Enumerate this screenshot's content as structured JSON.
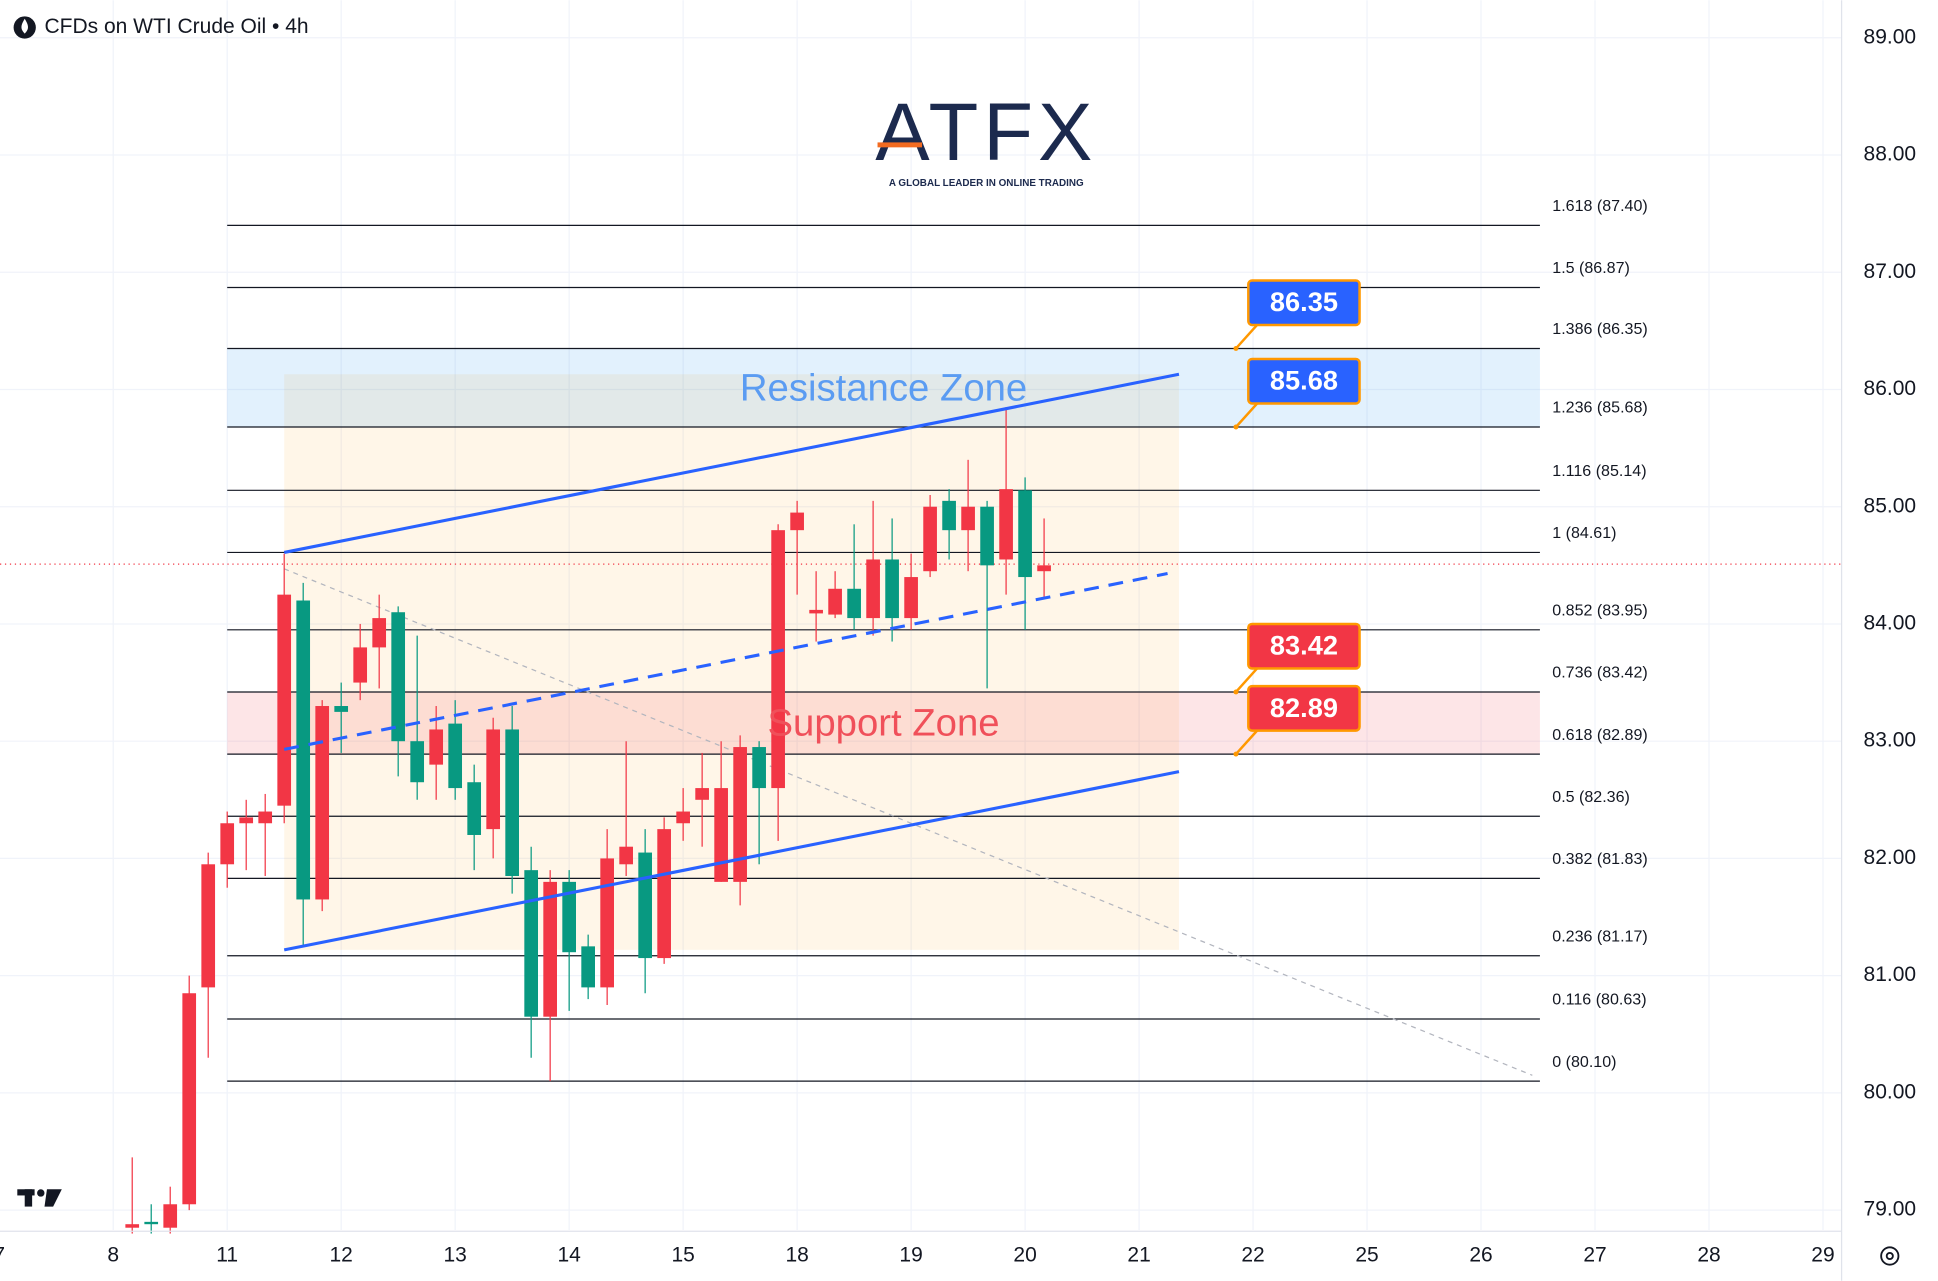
{
  "chart_data": {
    "type": "candlestick",
    "title": "CFDs on WTI Crude Oil • 4h",
    "logo": {
      "name": "ATFX",
      "tagline": "A GLOBAL LEADER IN ONLINE TRADING"
    },
    "x": [
      1,
      2,
      3,
      4,
      5,
      6,
      7,
      8,
      9,
      10,
      11,
      12,
      13,
      14,
      15,
      16,
      17,
      18,
      19,
      20,
      21,
      22,
      23,
      24,
      25,
      26,
      27,
      28,
      29,
      30,
      31,
      32,
      33,
      34,
      35,
      36,
      37,
      38,
      39,
      40,
      41,
      42,
      43,
      44,
      45,
      46,
      47,
      48,
      49
    ],
    "open": [
      78.85,
      78.9,
      78.85,
      79.05,
      80.9,
      81.95,
      82.3,
      82.3,
      82.45,
      84.2,
      81.65,
      83.3,
      83.5,
      83.8,
      84.1,
      83.0,
      82.8,
      83.15,
      82.65,
      82.25,
      83.1,
      81.9,
      80.65,
      81.8,
      81.25,
      80.9,
      81.95,
      82.05,
      81.15,
      82.3,
      82.5,
      81.8,
      81.8,
      82.95,
      82.6,
      84.8,
      84.09,
      84.08,
      84.3,
      84.05,
      84.55,
      84.05,
      84.45,
      85.05,
      84.8,
      85.0,
      84.55,
      85.14,
      84.45
    ],
    "high": [
      79.45,
      79.05,
      79.2,
      81.0,
      82.05,
      82.4,
      82.5,
      82.55,
      84.6,
      84.35,
      83.35,
      83.5,
      84.0,
      84.25,
      84.15,
      83.9,
      83.3,
      83.35,
      82.8,
      83.2,
      83.3,
      82.1,
      81.9,
      81.9,
      81.35,
      82.25,
      83.0,
      82.25,
      82.35,
      82.6,
      82.9,
      83.0,
      83.05,
      83.0,
      84.85,
      85.05,
      84.45,
      84.45,
      84.85,
      85.05,
      84.9,
      84.6,
      85.1,
      85.15,
      85.4,
      85.05,
      85.85,
      85.25,
      84.9
    ],
    "low": [
      78.8,
      78.8,
      78.8,
      79.0,
      80.3,
      81.75,
      81.9,
      81.85,
      82.3,
      81.25,
      81.55,
      82.9,
      83.35,
      83.45,
      82.7,
      82.5,
      82.5,
      82.5,
      81.9,
      82.0,
      81.7,
      80.3,
      80.1,
      80.7,
      80.8,
      80.75,
      81.85,
      80.85,
      81.1,
      82.15,
      82.1,
      81.8,
      81.6,
      81.95,
      82.15,
      84.25,
      83.85,
      84.05,
      83.95,
      83.9,
      83.85,
      83.95,
      84.4,
      84.55,
      84.45,
      83.45,
      84.25,
      83.95,
      84.22
    ],
    "close": [
      78.88,
      78.88,
      79.05,
      80.85,
      81.95,
      82.3,
      82.35,
      82.4,
      84.25,
      81.65,
      83.3,
      83.25,
      83.8,
      84.05,
      83.0,
      82.65,
      83.1,
      82.6,
      82.2,
      83.1,
      81.85,
      80.65,
      81.8,
      81.2,
      80.9,
      82.0,
      82.1,
      81.15,
      82.25,
      82.4,
      82.6,
      82.6,
      82.95,
      82.6,
      84.8,
      84.95,
      84.12,
      84.3,
      84.05,
      84.55,
      84.05,
      84.4,
      85.0,
      84.8,
      85.0,
      84.5,
      85.15,
      84.4,
      84.5
    ],
    "up_color": "#f23645",
    "down_color": "#089981",
    "xlim": [
      -5.96,
      90.98
    ],
    "xticks": [
      {
        "value": -6,
        "label": "7"
      },
      {
        "value": 0,
        "label": "8"
      },
      {
        "value": 6,
        "label": "11"
      },
      {
        "value": 12,
        "label": "12"
      },
      {
        "value": 18,
        "label": "13"
      },
      {
        "value": 24,
        "label": "14"
      },
      {
        "value": 30,
        "label": "15"
      },
      {
        "value": 36,
        "label": "18"
      },
      {
        "value": 42,
        "label": "19"
      },
      {
        "value": 48,
        "label": "20"
      },
      {
        "value": 54,
        "label": "21"
      },
      {
        "value": 60,
        "label": "22"
      },
      {
        "value": 66,
        "label": "25"
      },
      {
        "value": 72,
        "label": "26"
      },
      {
        "value": 78,
        "label": "27"
      },
      {
        "value": 84,
        "label": "28"
      },
      {
        "value": 90,
        "label": "29"
      }
    ],
    "ylim": [
      78.83,
      89.32
    ],
    "yticks": [
      {
        "value": 79,
        "label": "79.00"
      },
      {
        "value": 80,
        "label": "80.00"
      },
      {
        "value": 81,
        "label": "81.00"
      },
      {
        "value": 82,
        "label": "82.00"
      },
      {
        "value": 83,
        "label": "83.00"
      },
      {
        "value": 84,
        "label": "84.00"
      },
      {
        "value": 85,
        "label": "85.00"
      },
      {
        "value": 86,
        "label": "86.00"
      },
      {
        "value": 87,
        "label": "87.00"
      },
      {
        "value": 88,
        "label": "88.00"
      },
      {
        "value": 89,
        "label": "89.00"
      }
    ],
    "grid": true,
    "last_price": 84.51,
    "fib": {
      "x": [
        6,
        75.1
      ],
      "color": "#131722",
      "levels": [
        {
          "value": 87.4,
          "label": "1.618 (87.40)"
        },
        {
          "value": 86.87,
          "label": "1.5 (86.87)"
        },
        {
          "value": 86.35,
          "label": "1.386 (86.35)"
        },
        {
          "value": 85.68,
          "label": "1.236 (85.68)"
        },
        {
          "value": 85.14,
          "label": "1.116 (85.14)"
        },
        {
          "value": 84.61,
          "label": "1 (84.61)"
        },
        {
          "value": 83.95,
          "label": "0.852 (83.95)"
        },
        {
          "value": 83.42,
          "label": "0.736 (83.42)"
        },
        {
          "value": 82.89,
          "label": "0.618 (82.89)"
        },
        {
          "value": 82.36,
          "label": "0.5 (82.36)"
        },
        {
          "value": 81.83,
          "label": "0.382 (81.83)"
        },
        {
          "value": 81.17,
          "label": "0.236 (81.17)"
        },
        {
          "value": 80.63,
          "label": "0.116 (80.63)"
        },
        {
          "value": 80.1,
          "label": "0 (80.10)"
        }
      ]
    },
    "zones": [
      {
        "name": "Resistance Zone",
        "x": [
          6,
          75.1
        ],
        "y": [
          85.68,
          86.35
        ],
        "color": "#2196f3",
        "text_color": "#5b9cf2"
      },
      {
        "name": "Support Zone",
        "x": [
          6,
          75.1
        ],
        "y": [
          82.89,
          83.42
        ],
        "color": "#f23645",
        "text_color": "#f0505a"
      }
    ],
    "channel_fill": {
      "x": [
        9,
        56.1
      ],
      "y": [
        81.22,
        86.13
      ],
      "color": "#ff9800"
    },
    "channel": {
      "color": "#2962ff",
      "upper": {
        "x": [
          9,
          56.1
        ],
        "y": [
          84.61,
          86.13
        ]
      },
      "lower": {
        "x": [
          9,
          56.1
        ],
        "y": [
          81.22,
          82.74
        ]
      },
      "middle": {
        "x": [
          9,
          55.5
        ],
        "y": [
          82.93,
          84.43
        ]
      }
    },
    "trend_line": {
      "x": [
        9,
        74.7
      ],
      "y": [
        84.47,
        80.15
      ],
      "color": "#b2b5be"
    },
    "tag_x": 59.1,
    "price_tags": [
      {
        "value": 86.35,
        "color": "#2962ff"
      },
      {
        "value": 85.68,
        "color": "#2962ff"
      },
      {
        "value": 83.42,
        "color": "#f23645"
      },
      {
        "value": 82.89,
        "color": "#f23645"
      }
    ]
  }
}
